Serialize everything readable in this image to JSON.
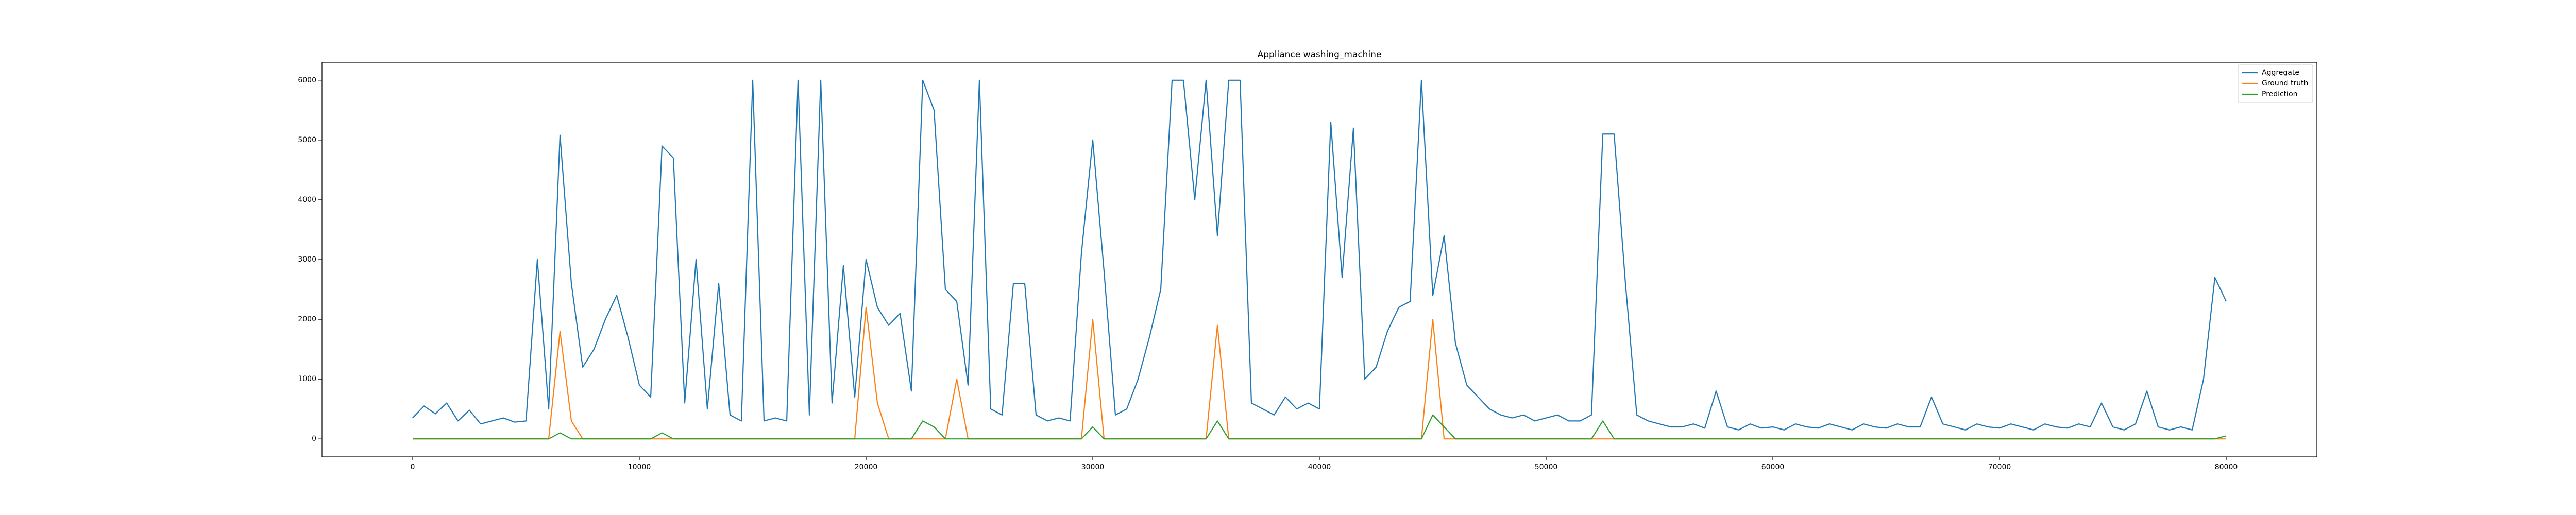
{
  "chart_data": {
    "type": "line",
    "title": "Appliance washing_machine",
    "x": [
      0,
      500,
      1000,
      1500,
      2000,
      2500,
      3000,
      3500,
      4000,
      4500,
      5000,
      5500,
      6000,
      6500,
      7000,
      7500,
      8000,
      8500,
      9000,
      9500,
      10000,
      10500,
      11000,
      11500,
      12000,
      12500,
      13000,
      13500,
      14000,
      14500,
      15000,
      15500,
      16000,
      16500,
      17000,
      17500,
      18000,
      18500,
      19000,
      19500,
      20000,
      20500,
      21000,
      21500,
      22000,
      22500,
      23000,
      23500,
      24000,
      24500,
      25000,
      25500,
      26000,
      26500,
      27000,
      27500,
      28000,
      28500,
      29000,
      29500,
      30000,
      30500,
      31000,
      31500,
      32000,
      32500,
      33000,
      33500,
      34000,
      34500,
      35000,
      35500,
      36000,
      36500,
      37000,
      37500,
      38000,
      38500,
      39000,
      39500,
      40000,
      40500,
      41000,
      41500,
      42000,
      42500,
      43000,
      43500,
      44000,
      44500,
      45000,
      45500,
      46000,
      46500,
      47000,
      47500,
      48000,
      48500,
      49000,
      49500,
      50000,
      50500,
      51000,
      51500,
      52000,
      52500,
      53000,
      53500,
      54000,
      54500,
      55000,
      55500,
      56000,
      56500,
      57000,
      57500,
      58000,
      58500,
      59000,
      59500,
      60000,
      60500,
      61000,
      61500,
      62000,
      62500,
      63000,
      63500,
      64000,
      64500,
      65000,
      65500,
      66000,
      66500,
      67000,
      67500,
      68000,
      68500,
      69000,
      69500,
      70000,
      70500,
      71000,
      71500,
      72000,
      72500,
      73000,
      73500,
      74000,
      74500,
      75000,
      75500,
      76000,
      76500,
      77000,
      77500,
      78000,
      78500,
      79000,
      79500,
      80000
    ],
    "series": [
      {
        "name": "Aggregate",
        "color": "#1f77b4",
        "values": [
          350,
          550,
          420,
          600,
          300,
          480,
          250,
          300,
          350,
          280,
          300,
          3000,
          500,
          5080,
          2600,
          1200,
          1500,
          2000,
          2400,
          1700,
          900,
          700,
          4900,
          4700,
          600,
          3000,
          500,
          2600,
          400,
          300,
          6000,
          300,
          350,
          300,
          6000,
          400,
          6000,
          600,
          2900,
          700,
          3000,
          2200,
          1900,
          2100,
          800,
          6000,
          5500,
          2500,
          2300,
          900,
          6000,
          500,
          400,
          2600,
          2600,
          400,
          300,
          350,
          300,
          3100,
          5000,
          2800,
          400,
          500,
          1000,
          1700,
          2500,
          6000,
          6000,
          4000,
          6000,
          3400,
          6000,
          6000,
          600,
          500,
          400,
          700,
          500,
          600,
          500,
          5300,
          2700,
          5200,
          1000,
          1200,
          1800,
          2200,
          2300,
          6000,
          2400,
          3400,
          1600,
          900,
          700,
          500,
          400,
          350,
          400,
          300,
          350,
          400,
          300,
          300,
          400,
          5100,
          5100,
          2600,
          400,
          300,
          250,
          200,
          200,
          250,
          180,
          800,
          200,
          150,
          250,
          180,
          200,
          150,
          250,
          200,
          180,
          250,
          200,
          150,
          250,
          200,
          180,
          250,
          200,
          200,
          700,
          250,
          200,
          150,
          250,
          200,
          180,
          250,
          200,
          150,
          250,
          200,
          180,
          250,
          200,
          600,
          200,
          150,
          250,
          800,
          200,
          150,
          200,
          150,
          1000,
          2700,
          2300
        ]
      },
      {
        "name": "Ground truth",
        "color": "#ff7f0e",
        "values": [
          0,
          0,
          0,
          0,
          0,
          0,
          0,
          0,
          0,
          0,
          0,
          0,
          0,
          1800,
          300,
          0,
          0,
          0,
          0,
          0,
          0,
          0,
          0,
          0,
          0,
          0,
          0,
          0,
          0,
          0,
          0,
          0,
          0,
          0,
          0,
          0,
          0,
          0,
          0,
          0,
          2200,
          600,
          0,
          0,
          0,
          0,
          0,
          0,
          1000,
          0,
          0,
          0,
          0,
          0,
          0,
          0,
          0,
          0,
          0,
          0,
          2000,
          0,
          0,
          0,
          0,
          0,
          0,
          0,
          0,
          0,
          0,
          1900,
          0,
          0,
          0,
          0,
          0,
          0,
          0,
          0,
          0,
          0,
          0,
          0,
          0,
          0,
          0,
          0,
          0,
          0,
          2000,
          0,
          0,
          0,
          0,
          0,
          0,
          0,
          0,
          0,
          0,
          0,
          0,
          0,
          0,
          0,
          0,
          0,
          0,
          0,
          0,
          0,
          0,
          0,
          0,
          0,
          0,
          0,
          0,
          0,
          0,
          0,
          0,
          0,
          0,
          0,
          0,
          0,
          0,
          0,
          0,
          0,
          0,
          0,
          0,
          0,
          0,
          0,
          0,
          0,
          0,
          0,
          0,
          0,
          0,
          0,
          0,
          0,
          0,
          0,
          0,
          0,
          0,
          0,
          0,
          0,
          0,
          0,
          0,
          0,
          0
        ]
      },
      {
        "name": "Prediction",
        "color": "#2ca02c",
        "values": [
          0,
          0,
          0,
          0,
          0,
          0,
          0,
          0,
          0,
          0,
          0,
          0,
          0,
          100,
          0,
          0,
          0,
          0,
          0,
          0,
          0,
          0,
          100,
          0,
          0,
          0,
          0,
          0,
          0,
          0,
          0,
          0,
          0,
          0,
          0,
          0,
          0,
          0,
          0,
          0,
          0,
          0,
          0,
          0,
          0,
          300,
          200,
          0,
          0,
          0,
          0,
          0,
          0,
          0,
          0,
          0,
          0,
          0,
          0,
          0,
          200,
          0,
          0,
          0,
          0,
          0,
          0,
          0,
          0,
          0,
          0,
          300,
          0,
          0,
          0,
          0,
          0,
          0,
          0,
          0,
          0,
          0,
          0,
          0,
          0,
          0,
          0,
          0,
          0,
          0,
          400,
          200,
          0,
          0,
          0,
          0,
          0,
          0,
          0,
          0,
          0,
          0,
          0,
          0,
          0,
          300,
          0,
          0,
          0,
          0,
          0,
          0,
          0,
          0,
          0,
          0,
          0,
          0,
          0,
          0,
          0,
          0,
          0,
          0,
          0,
          0,
          0,
          0,
          0,
          0,
          0,
          0,
          0,
          0,
          0,
          0,
          0,
          0,
          0,
          0,
          0,
          0,
          0,
          0,
          0,
          0,
          0,
          0,
          0,
          0,
          0,
          0,
          0,
          0,
          0,
          0,
          0,
          0,
          0,
          0,
          50
        ]
      }
    ],
    "xlim": [
      -4000,
      84000
    ],
    "ylim": [
      -300,
      6300
    ],
    "xticks": [
      0,
      10000,
      20000,
      30000,
      40000,
      50000,
      60000,
      70000,
      80000
    ],
    "yticks": [
      0,
      1000,
      2000,
      3000,
      4000,
      5000,
      6000
    ],
    "legend": "upper right"
  }
}
